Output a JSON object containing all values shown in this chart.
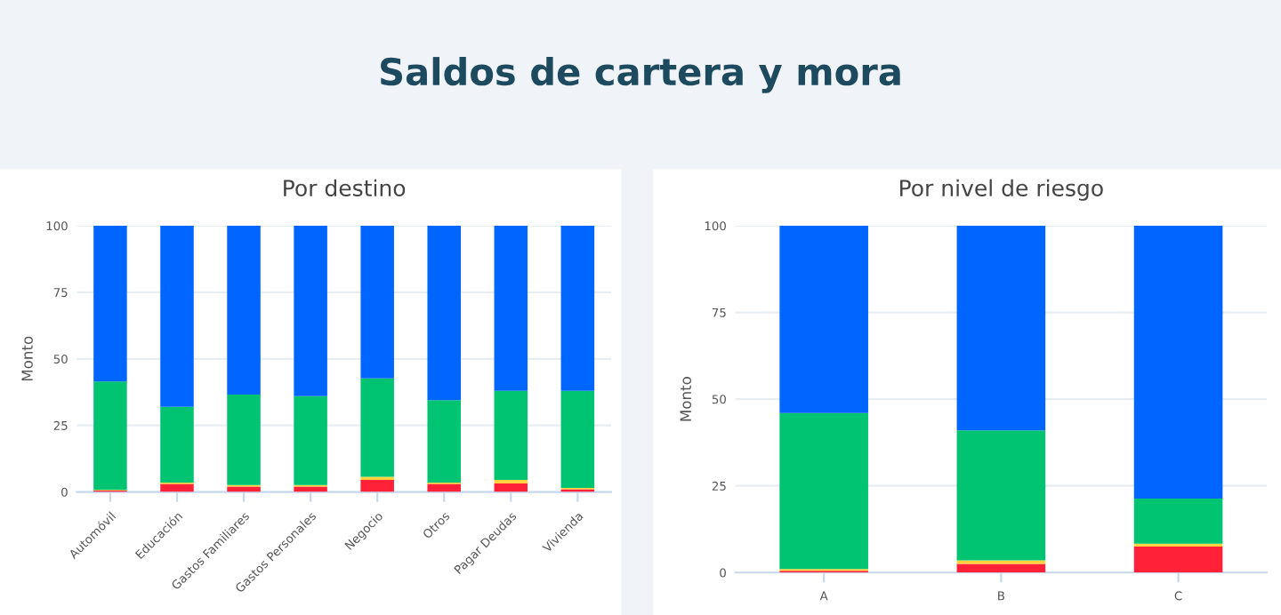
{
  "chart_data": [
    {
      "type": "other",
      "title": "Saldos de cartera y mora"
    },
    {
      "type": "bar",
      "title": "Por destino",
      "ylabel": "Monto",
      "stacked": true,
      "categories": [
        "Automóvil",
        "Educación",
        "Gastos Familiares",
        "Gastos Personales",
        "Negocio",
        "Otros",
        "Pagar Deudas",
        "Vivienda"
      ],
      "series": [
        {
          "color": "#ff2138",
          "values": [
            0.5,
            3,
            2,
            2,
            4.5,
            3,
            3.2,
            1
          ]
        },
        {
          "color": "#ffd23f",
          "values": [
            0.3,
            0.5,
            0.6,
            0.6,
            1.2,
            0.5,
            1.3,
            0.5
          ]
        },
        {
          "color": "#00c472",
          "values": [
            40.7,
            28.5,
            34,
            33.4,
            37,
            31,
            33.5,
            36.5
          ]
        },
        {
          "color": "#0066ff",
          "values": [
            58.5,
            68,
            63.4,
            64,
            57.3,
            65.5,
            62,
            62
          ]
        }
      ],
      "ylim": [
        0,
        100
      ],
      "yticks": [
        0,
        25,
        50,
        75,
        100
      ],
      "grid": "y",
      "legend": false
    },
    {
      "type": "bar",
      "title": "Por nivel de riesgo",
      "ylabel": "Monto",
      "stacked": true,
      "categories": [
        "A",
        "B",
        "C"
      ],
      "series": [
        {
          "color": "#ff2138",
          "values": [
            0.5,
            2.5,
            7.5
          ]
        },
        {
          "color": "#ffd23f",
          "values": [
            0.5,
            1,
            0.8
          ]
        },
        {
          "color": "#00c472",
          "values": [
            45,
            37.5,
            13
          ]
        },
        {
          "color": "#0066ff",
          "values": [
            54,
            59,
            78.7
          ]
        }
      ],
      "ylim": [
        0,
        100
      ],
      "yticks": [
        0,
        25,
        50,
        75,
        100
      ],
      "grid": "y",
      "legend": false
    }
  ]
}
